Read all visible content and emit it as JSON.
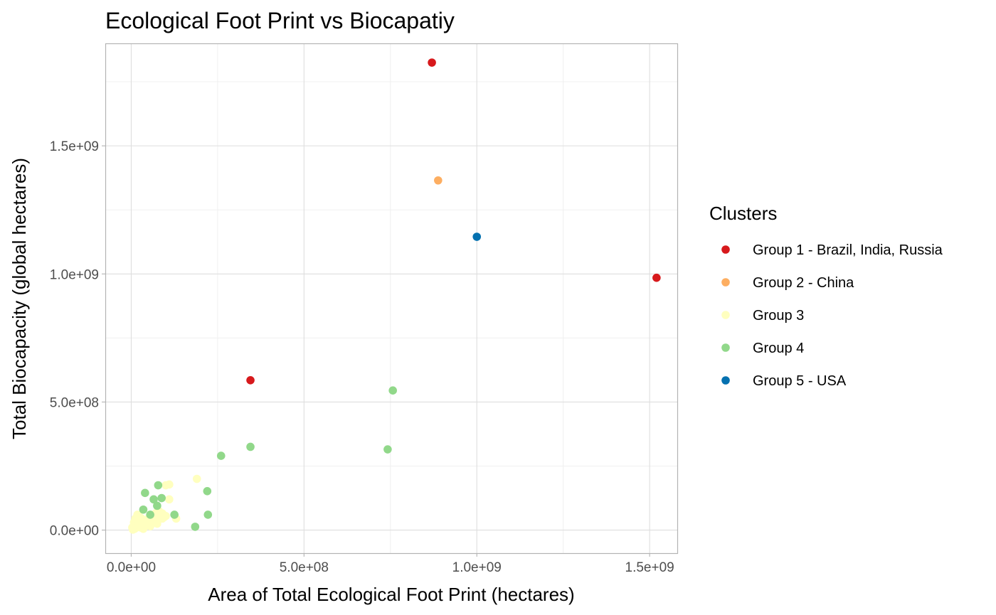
{
  "chart_data": {
    "type": "scatter",
    "title": "Ecological Foot Print vs Biocapatiy",
    "xlabel": "Area of Total Ecological Foot Print (hectares)",
    "ylabel": "Total Biocapacity (global hectares)",
    "xlim": [
      -75000000,
      1580000000
    ],
    "ylim": [
      -90000000,
      1900000000
    ],
    "x_ticks": [
      {
        "value": 0,
        "label": "0.0e+00"
      },
      {
        "value": 500000000,
        "label": "5.0e+08"
      },
      {
        "value": 1000000000,
        "label": "1.0e+09"
      },
      {
        "value": 1500000000,
        "label": "1.5e+09"
      }
    ],
    "y_ticks": [
      {
        "value": 0,
        "label": "0.0e+00"
      },
      {
        "value": 500000000,
        "label": "5.0e+08"
      },
      {
        "value": 1000000000,
        "label": "1.0e+09"
      },
      {
        "value": 1500000000,
        "label": "1.5e+09"
      }
    ],
    "grid": true,
    "legend_title": "Clusters",
    "legend_position": "right",
    "series": [
      {
        "name": "Group 1 - Brazil, India, Russia",
        "color": "#d7191c",
        "points": [
          [
            870000000,
            1825000000
          ],
          [
            1520000000,
            985000000
          ],
          [
            345000000,
            585000000
          ]
        ]
      },
      {
        "name": "Group 2 - China",
        "color": "#fdae61",
        "points": [
          [
            888000000,
            1365000000
          ]
        ]
      },
      {
        "name": "Group 3",
        "color": "#ffffbf",
        "points": [
          [
            5000000,
            2000000
          ],
          [
            10000000,
            5000000
          ],
          [
            15000000,
            10000000
          ],
          [
            20000000,
            15000000
          ],
          [
            25000000,
            20000000
          ],
          [
            30000000,
            25000000
          ],
          [
            35000000,
            30000000
          ],
          [
            40000000,
            35000000
          ],
          [
            45000000,
            40000000
          ],
          [
            50000000,
            45000000
          ],
          [
            55000000,
            50000000
          ],
          [
            60000000,
            55000000
          ],
          [
            65000000,
            60000000
          ],
          [
            70000000,
            65000000
          ],
          [
            75000000,
            70000000
          ],
          [
            80000000,
            75000000
          ],
          [
            90000000,
            65000000
          ],
          [
            100000000,
            55000000
          ],
          [
            110000000,
            120000000
          ],
          [
            130000000,
            45000000
          ],
          [
            100000000,
            175000000
          ],
          [
            110000000,
            178000000
          ],
          [
            190000000,
            200000000
          ],
          [
            8000000,
            30000000
          ],
          [
            12000000,
            45000000
          ],
          [
            18000000,
            60000000
          ],
          [
            25000000,
            50000000
          ],
          [
            28000000,
            10000000
          ],
          [
            35000000,
            5000000
          ],
          [
            40000000,
            20000000
          ],
          [
            45000000,
            30000000
          ],
          [
            55000000,
            15000000
          ],
          [
            60000000,
            35000000
          ],
          [
            70000000,
            40000000
          ],
          [
            75000000,
            25000000
          ],
          [
            85000000,
            55000000
          ],
          [
            95000000,
            50000000
          ],
          [
            3000000,
            10000000
          ],
          [
            20000000,
            35000000
          ],
          [
            30000000,
            45000000
          ],
          [
            50000000,
            25000000
          ],
          [
            65000000,
            45000000
          ],
          [
            80000000,
            60000000
          ],
          [
            90000000,
            45000000
          ]
        ]
      },
      {
        "name": "Group 4",
        "color": "#91d88a",
        "points": [
          [
            757000000,
            545000000
          ],
          [
            742000000,
            315000000
          ],
          [
            345000000,
            325000000
          ],
          [
            260000000,
            290000000
          ],
          [
            220000000,
            152000000
          ],
          [
            222000000,
            60000000
          ],
          [
            185000000,
            13000000
          ],
          [
            78000000,
            175000000
          ],
          [
            40000000,
            145000000
          ],
          [
            65000000,
            120000000
          ],
          [
            88000000,
            125000000
          ],
          [
            75000000,
            95000000
          ],
          [
            35000000,
            80000000
          ],
          [
            55000000,
            60000000
          ],
          [
            125000000,
            60000000
          ]
        ]
      },
      {
        "name": "Group 5 - USA",
        "color": "#0571b0",
        "points": [
          [
            1000000000,
            1145000000
          ]
        ]
      }
    ]
  }
}
